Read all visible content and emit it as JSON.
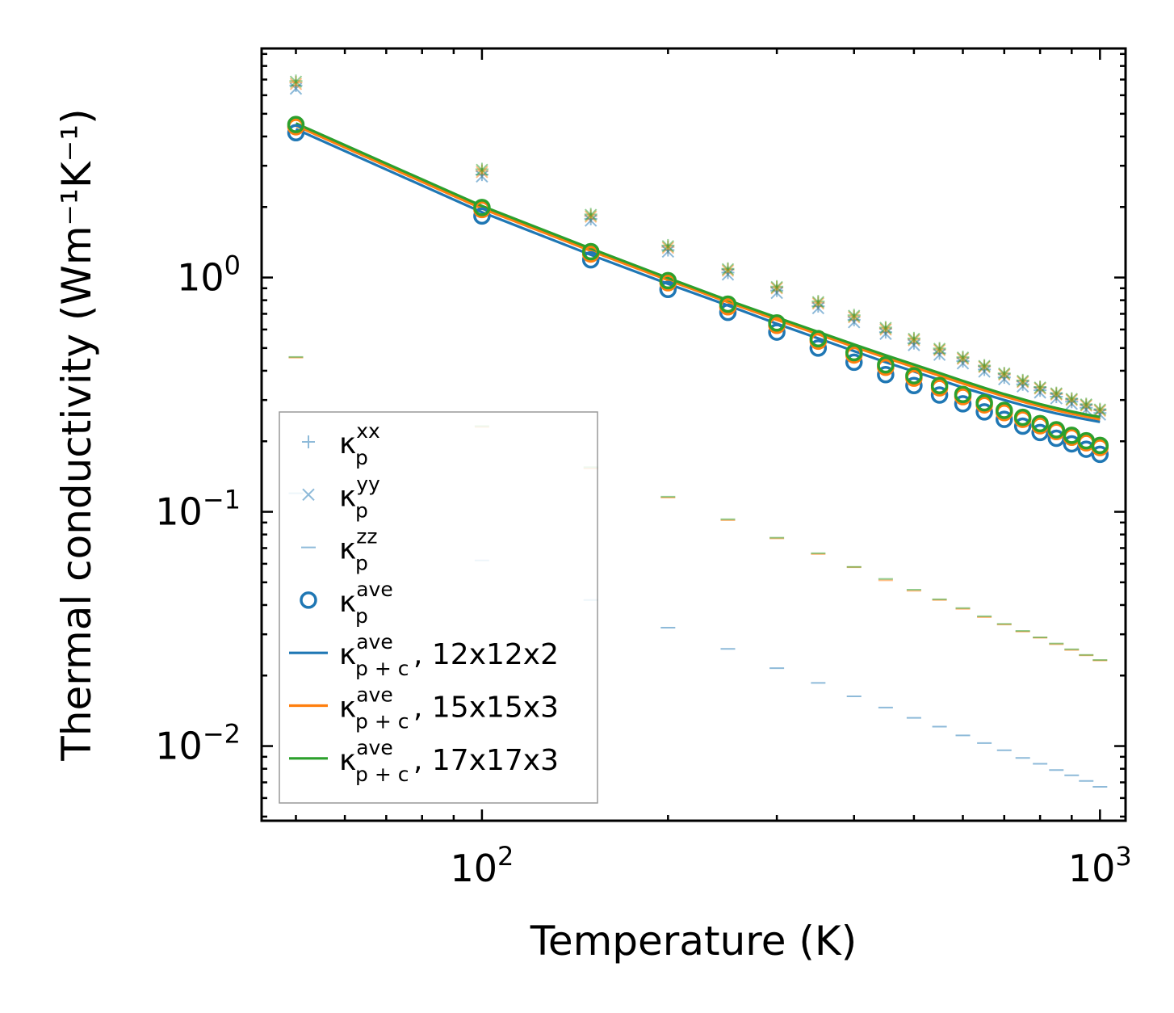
{
  "chart_data": {
    "type": "scatter",
    "scale": {
      "x": "log",
      "y": "log"
    },
    "xlabel": "Temperature (K)",
    "ylabel": "Thermal conductivity (Wm⁻¹K⁻¹)",
    "xlim": [
      44,
      1100
    ],
    "ylim": [
      0.0048,
      9.5
    ],
    "x_ticks": [
      {
        "value": 100,
        "base": "10",
        "exp": "2"
      },
      {
        "value": 1000,
        "base": "10",
        "exp": "3"
      }
    ],
    "y_ticks": [
      {
        "value": 1,
        "base": "10",
        "exp": "0"
      },
      {
        "value": 0.1,
        "base": "10",
        "exp": "−1"
      },
      {
        "value": 0.01,
        "base": "10",
        "exp": "−2"
      }
    ],
    "x": [
      50,
      100,
      150,
      200,
      250,
      300,
      350,
      400,
      450,
      500,
      550,
      600,
      650,
      700,
      750,
      800,
      850,
      900,
      950,
      1000
    ],
    "series": [
      {
        "name": "κ_p^xx, 12x12x2",
        "group": "xx",
        "color": "#1f77b4",
        "marker": "plus",
        "alpha": 0.5,
        "values": [
          6.6,
          2.75,
          1.78,
          1.31,
          1.05,
          0.88,
          0.755,
          0.66,
          0.585,
          0.525,
          0.475,
          0.44,
          0.405,
          0.375,
          0.35,
          0.33,
          0.31,
          0.295,
          0.278,
          0.264
        ]
      },
      {
        "name": "κ_p^yy, 12x12x2",
        "group": "yy",
        "color": "#1f77b4",
        "marker": "x",
        "alpha": 0.5,
        "values": [
          6.4,
          2.7,
          1.75,
          1.29,
          1.03,
          0.86,
          0.74,
          0.645,
          0.575,
          0.515,
          0.468,
          0.43,
          0.397,
          0.368,
          0.343,
          0.323,
          0.305,
          0.289,
          0.273,
          0.26
        ]
      },
      {
        "name": "κ_p^zz, 12x12x2",
        "group": "zz",
        "color": "#1f77b4",
        "marker": "hline",
        "alpha": 0.5,
        "values": [
          0.12,
          0.062,
          0.042,
          0.032,
          0.026,
          0.0215,
          0.0186,
          0.0163,
          0.0146,
          0.0132,
          0.0121,
          0.0111,
          0.0103,
          0.0096,
          0.0089,
          0.0084,
          0.0079,
          0.0075,
          0.0071,
          0.0067
        ]
      },
      {
        "name": "κ_p^ave, 12x12x2",
        "group": "ave",
        "color": "#1f77b4",
        "marker": "circle",
        "alpha": 1,
        "values": [
          4.15,
          1.83,
          1.19,
          0.89,
          0.71,
          0.585,
          0.5,
          0.435,
          0.385,
          0.346,
          0.315,
          0.289,
          0.267,
          0.248,
          0.232,
          0.218,
          0.206,
          0.195,
          0.185,
          0.176
        ]
      },
      {
        "name": "κ_p+c^ave, 12x12x2",
        "group": "line",
        "color": "#1f77b4",
        "marker": "line",
        "alpha": 1,
        "values": [
          4.3,
          1.9,
          1.25,
          0.94,
          0.76,
          0.635,
          0.55,
          0.485,
          0.435,
          0.397,
          0.366,
          0.339,
          0.318,
          0.3,
          0.285,
          0.273,
          0.263,
          0.255,
          0.248,
          0.242
        ]
      },
      {
        "name": "κ_p^xx, 15x15x3",
        "group": "xx",
        "color": "#ff7f0e",
        "marker": "plus",
        "alpha": 0.5,
        "values": [
          6.8,
          2.85,
          1.83,
          1.35,
          1.08,
          0.905,
          0.78,
          0.68,
          0.605,
          0.543,
          0.492,
          0.452,
          0.417,
          0.386,
          0.36,
          0.338,
          0.318,
          0.301,
          0.285,
          0.271
        ]
      },
      {
        "name": "κ_p^yy, 15x15x3",
        "group": "yy",
        "color": "#ff7f0e",
        "marker": "x",
        "alpha": 0.5,
        "values": [
          6.7,
          2.82,
          1.82,
          1.34,
          1.07,
          0.9,
          0.775,
          0.677,
          0.6,
          0.54,
          0.49,
          0.45,
          0.415,
          0.385,
          0.358,
          0.336,
          0.317,
          0.3,
          0.284,
          0.27
        ]
      },
      {
        "name": "κ_p^zz, 15x15x3",
        "group": "zz",
        "color": "#ff7f0e",
        "marker": "hline",
        "alpha": 0.5,
        "values": [
          0.455,
          0.23,
          0.153,
          0.115,
          0.092,
          0.077,
          0.066,
          0.058,
          0.051,
          0.046,
          0.042,
          0.0385,
          0.0355,
          0.033,
          0.0308,
          0.029,
          0.0272,
          0.0257,
          0.0244,
          0.0232
        ]
      },
      {
        "name": "κ_p^ave, 15x15x3",
        "group": "ave",
        "color": "#ff7f0e",
        "marker": "circle",
        "alpha": 1,
        "values": [
          4.4,
          1.95,
          1.26,
          0.95,
          0.75,
          0.625,
          0.535,
          0.467,
          0.414,
          0.372,
          0.338,
          0.31,
          0.286,
          0.265,
          0.248,
          0.233,
          0.22,
          0.208,
          0.197,
          0.188
        ]
      },
      {
        "name": "κ_p+c^ave, 15x15x3",
        "group": "line",
        "color": "#ff7f0e",
        "marker": "line",
        "alpha": 1,
        "values": [
          4.45,
          1.97,
          1.3,
          0.975,
          0.785,
          0.66,
          0.573,
          0.506,
          0.455,
          0.414,
          0.381,
          0.353,
          0.33,
          0.311,
          0.295,
          0.282,
          0.271,
          0.262,
          0.255,
          0.248
        ]
      },
      {
        "name": "κ_p^xx, 17x17x3",
        "group": "xx",
        "color": "#2ca02c",
        "marker": "plus",
        "alpha": 0.5,
        "values": [
          6.9,
          2.9,
          1.86,
          1.37,
          1.09,
          0.915,
          0.79,
          0.69,
          0.612,
          0.55,
          0.498,
          0.457,
          0.421,
          0.39,
          0.364,
          0.341,
          0.321,
          0.304,
          0.288,
          0.274
        ]
      },
      {
        "name": "κ_p^yy, 17x17x3",
        "group": "yy",
        "color": "#2ca02c",
        "marker": "x",
        "alpha": 0.5,
        "values": [
          6.85,
          2.88,
          1.85,
          1.36,
          1.085,
          0.91,
          0.785,
          0.686,
          0.609,
          0.547,
          0.496,
          0.455,
          0.419,
          0.389,
          0.362,
          0.339,
          0.32,
          0.303,
          0.287,
          0.273
        ]
      },
      {
        "name": "κ_p^zz, 17x17x3",
        "group": "zz",
        "color": "#2ca02c",
        "marker": "hline",
        "alpha": 0.5,
        "values": [
          0.458,
          0.232,
          0.155,
          0.116,
          0.093,
          0.0775,
          0.0665,
          0.0582,
          0.0517,
          0.0465,
          0.0423,
          0.0388,
          0.0358,
          0.0332,
          0.031,
          0.0291,
          0.0274,
          0.0259,
          0.0245,
          0.0233
        ]
      },
      {
        "name": "κ_p^ave, 17x17x3",
        "group": "ave",
        "color": "#2ca02c",
        "marker": "circle",
        "alpha": 1,
        "values": [
          4.5,
          1.99,
          1.29,
          0.97,
          0.77,
          0.64,
          0.548,
          0.478,
          0.424,
          0.381,
          0.346,
          0.317,
          0.292,
          0.271,
          0.253,
          0.238,
          0.224,
          0.212,
          0.201,
          0.192
        ]
      },
      {
        "name": "κ_p+c^ave, 17x17x3",
        "group": "line",
        "color": "#2ca02c",
        "marker": "line",
        "alpha": 1,
        "values": [
          4.55,
          2.02,
          1.33,
          0.995,
          0.8,
          0.675,
          0.586,
          0.518,
          0.466,
          0.425,
          0.391,
          0.362,
          0.338,
          0.318,
          0.302,
          0.288,
          0.277,
          0.268,
          0.26,
          0.254
        ]
      }
    ],
    "legend": {
      "position": "lower-left",
      "entries": [
        {
          "marker": "plus",
          "color": "#1f77b4",
          "alpha": 0.5,
          "sym": "κ",
          "sub": "p",
          "sup": "xx",
          "suffix": ""
        },
        {
          "marker": "x",
          "color": "#1f77b4",
          "alpha": 0.5,
          "sym": "κ",
          "sub": "p",
          "sup": "yy",
          "suffix": ""
        },
        {
          "marker": "hline",
          "color": "#1f77b4",
          "alpha": 0.5,
          "sym": "κ",
          "sub": "p",
          "sup": "zz",
          "suffix": ""
        },
        {
          "marker": "circle",
          "color": "#1f77b4",
          "alpha": 1,
          "sym": "κ",
          "sub": "p",
          "sup": "ave",
          "suffix": ""
        },
        {
          "marker": "line",
          "color": "#1f77b4",
          "alpha": 1,
          "sym": "κ",
          "sub": "p + c",
          "sup": "ave",
          "suffix": ", 12x12x2"
        },
        {
          "marker": "line",
          "color": "#ff7f0e",
          "alpha": 1,
          "sym": "κ",
          "sub": "p + c",
          "sup": "ave",
          "suffix": ", 15x15x3"
        },
        {
          "marker": "line",
          "color": "#2ca02c",
          "alpha": 1,
          "sym": "κ",
          "sub": "p + c",
          "sup": "ave",
          "suffix": ", 17x17x3"
        }
      ]
    }
  }
}
